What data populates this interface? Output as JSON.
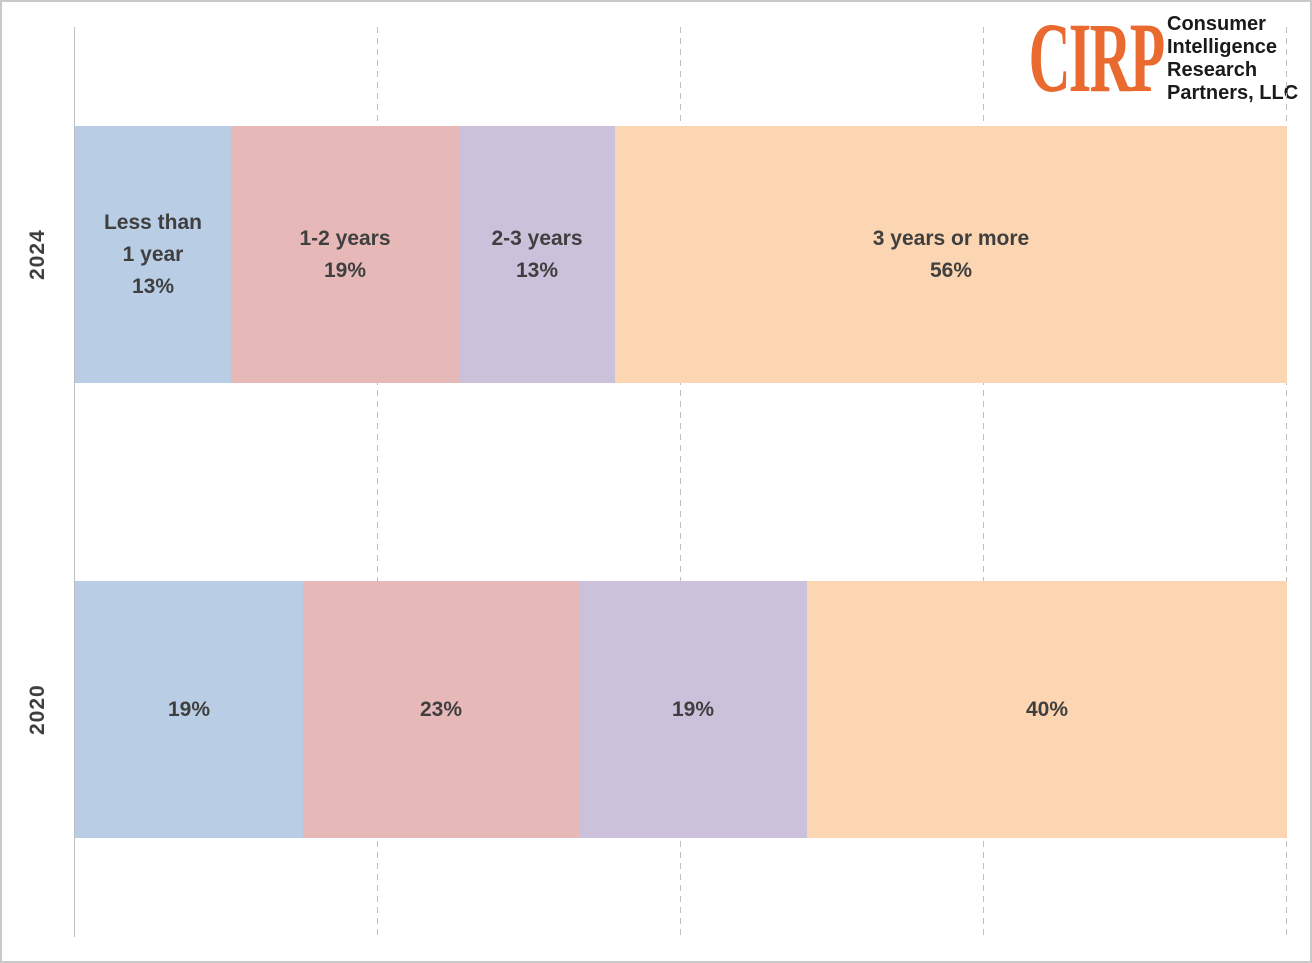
{
  "logo": {
    "acronym": "CIRP",
    "name_lines": [
      "Consumer",
      "Intelligence",
      "Research",
      "Partners, LLC"
    ],
    "accent_color": "#E9692E",
    "text_color": "#1A1A1A"
  },
  "colors": {
    "background": "#FFFFFF",
    "border": "#C9C9C9",
    "gridline": "#BFBFBF",
    "axis_line": "#BFBFBF",
    "label_text": "#3F3F3F",
    "segment_less_than_1_year": "#B9CDE5",
    "segment_1_2_years": "#E7B8B8",
    "segment_2_3_years": "#CBC1DB",
    "segment_3_years_or_more": "#FCD5B2"
  },
  "chart_data": {
    "type": "bar",
    "subtype": "horizontal-stacked-100pct",
    "title": "",
    "xlabel": "",
    "ylabel": "",
    "axis_range": [
      0,
      100
    ],
    "gridlines_pct": [
      25,
      50,
      75,
      100
    ],
    "grid_style": "vertical-dashed",
    "legend": "none",
    "categories": [
      "2024",
      "2020"
    ],
    "series": [
      {
        "name": "Less than 1 year",
        "color": "#B9CDE5",
        "values": [
          13,
          19
        ]
      },
      {
        "name": "1-2 years",
        "color": "#E7B8B8",
        "values": [
          19,
          23
        ]
      },
      {
        "name": "2-3 years",
        "color": "#CBC1DB",
        "values": [
          13,
          19
        ]
      },
      {
        "name": "3 years or more",
        "color": "#FCD5B2",
        "values": [
          56,
          40
        ]
      }
    ],
    "rows": [
      {
        "category": "2024",
        "segments": [
          {
            "name": "less-than-1-year",
            "value": 13,
            "color": "#B9CDE5",
            "label_lines": [
              "Less than",
              "1 year",
              "13%"
            ]
          },
          {
            "name": "1-2-years",
            "value": 19,
            "color": "#E7B8B8",
            "label_lines": [
              "1-2 years",
              "19%"
            ]
          },
          {
            "name": "2-3-years",
            "value": 13,
            "color": "#CBC1DB",
            "label_lines": [
              "2-3 years",
              "13%"
            ]
          },
          {
            "name": "3-years-or-more",
            "value": 56,
            "color": "#FCD5B2",
            "label_lines": [
              "3 years or more",
              "56%"
            ]
          }
        ]
      },
      {
        "category": "2020",
        "segments": [
          {
            "name": "less-than-1-year",
            "value": 19,
            "color": "#B9CDE5",
            "label_lines": [
              "19%"
            ]
          },
          {
            "name": "1-2-years",
            "value": 23,
            "color": "#E7B8B8",
            "label_lines": [
              "23%"
            ]
          },
          {
            "name": "2-3-years",
            "value": 19,
            "color": "#CBC1DB",
            "label_lines": [
              "19%"
            ]
          },
          {
            "name": "3-years-or-more",
            "value": 40,
            "color": "#FCD5B2",
            "label_lines": [
              "40%"
            ]
          }
        ]
      }
    ]
  }
}
